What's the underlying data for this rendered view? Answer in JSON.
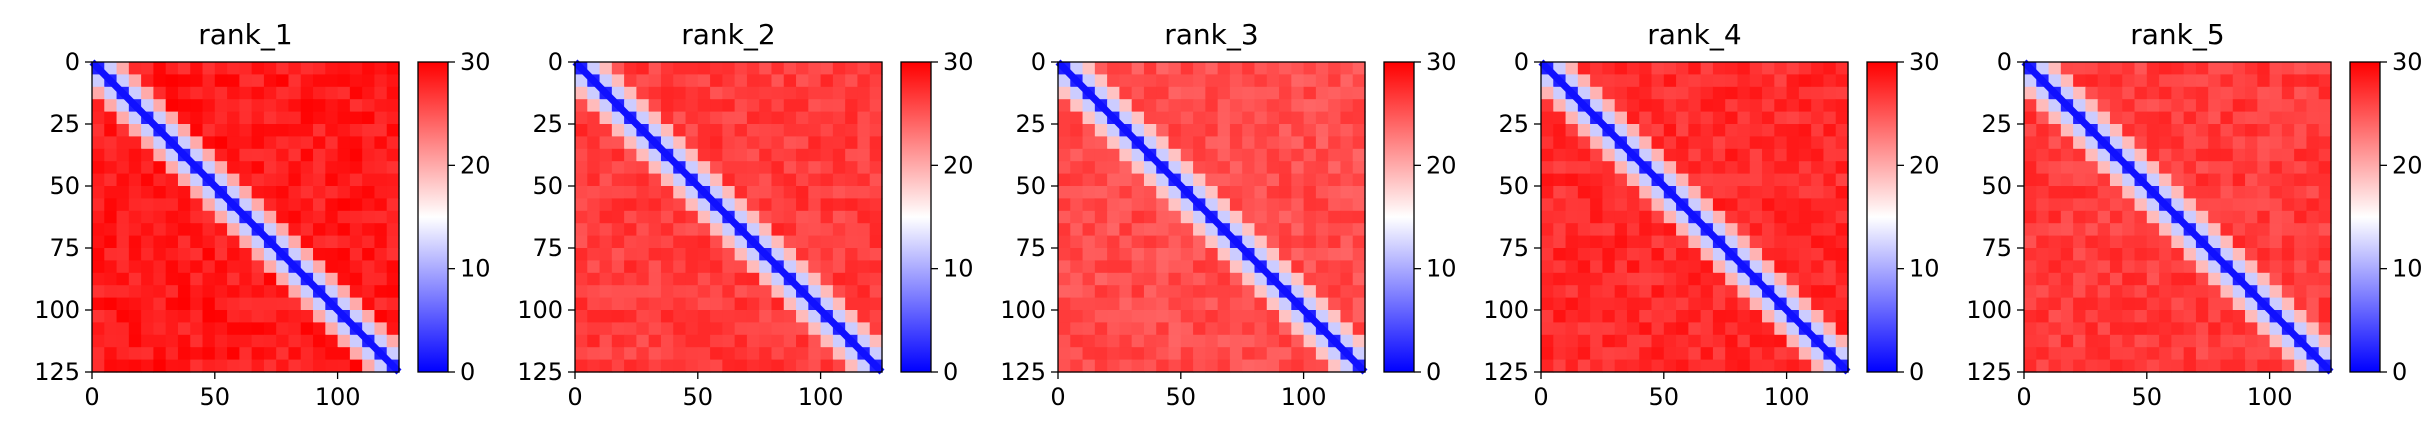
{
  "chart_data": [
    {
      "type": "heatmap",
      "title": "rank_1",
      "x_ticks": [
        0,
        50,
        100
      ],
      "y_ticks": [
        0,
        25,
        50,
        75,
        100,
        125
      ],
      "xlim": [
        0,
        125
      ],
      "ylim": [
        125,
        0
      ],
      "colorbar": {
        "ticks": [
          0,
          10,
          20,
          30
        ],
        "range": [
          0,
          30
        ],
        "colormap": "bwr"
      },
      "description_values": {
        "diagonal": 0,
        "near_diagonal_band": 12,
        "off_diagonal": 30
      }
    },
    {
      "type": "heatmap",
      "title": "rank_2",
      "x_ticks": [
        0,
        50,
        100
      ],
      "y_ticks": [
        0,
        25,
        50,
        75,
        100,
        125
      ],
      "xlim": [
        0,
        125
      ],
      "ylim": [
        125,
        0
      ],
      "colorbar": {
        "ticks": [
          0,
          10,
          20,
          30
        ],
        "range": [
          0,
          30
        ],
        "colormap": "bwr"
      },
      "description_values": {
        "diagonal": 0,
        "near_diagonal_band": 12,
        "off_diagonal": 28
      }
    },
    {
      "type": "heatmap",
      "title": "rank_3",
      "x_ticks": [
        0,
        50,
        100
      ],
      "y_ticks": [
        0,
        25,
        50,
        75,
        100,
        125
      ],
      "xlim": [
        0,
        125
      ],
      "ylim": [
        125,
        0
      ],
      "colorbar": {
        "ticks": [
          0,
          10,
          20,
          30
        ],
        "range": [
          0,
          30
        ],
        "colormap": "bwr"
      },
      "description_values": {
        "diagonal": 0,
        "near_diagonal_band": 12,
        "off_diagonal": 27
      }
    },
    {
      "type": "heatmap",
      "title": "rank_4",
      "x_ticks": [
        0,
        50,
        100
      ],
      "y_ticks": [
        0,
        25,
        50,
        75,
        100,
        125
      ],
      "xlim": [
        0,
        125
      ],
      "ylim": [
        125,
        0
      ],
      "colorbar": {
        "ticks": [
          0,
          10,
          20,
          30
        ],
        "range": [
          0,
          30
        ],
        "colormap": "bwr"
      },
      "description_values": {
        "diagonal": 0,
        "near_diagonal_band": 12,
        "off_diagonal": 29
      }
    },
    {
      "type": "heatmap",
      "title": "rank_5",
      "x_ticks": [
        0,
        50,
        100
      ],
      "y_ticks": [
        0,
        25,
        50,
        75,
        100,
        125
      ],
      "xlim": [
        0,
        125
      ],
      "ylim": [
        125,
        0
      ],
      "colorbar": {
        "ticks": [
          0,
          10,
          20,
          30
        ],
        "range": [
          0,
          30
        ],
        "colormap": "bwr"
      },
      "description_values": {
        "diagonal": 0,
        "near_diagonal_band": 12,
        "off_diagonal": 28
      }
    }
  ],
  "colors": {
    "low": "#0000ff",
    "mid": "#ffffff",
    "high": "#ff0000",
    "axis": "#000000"
  }
}
